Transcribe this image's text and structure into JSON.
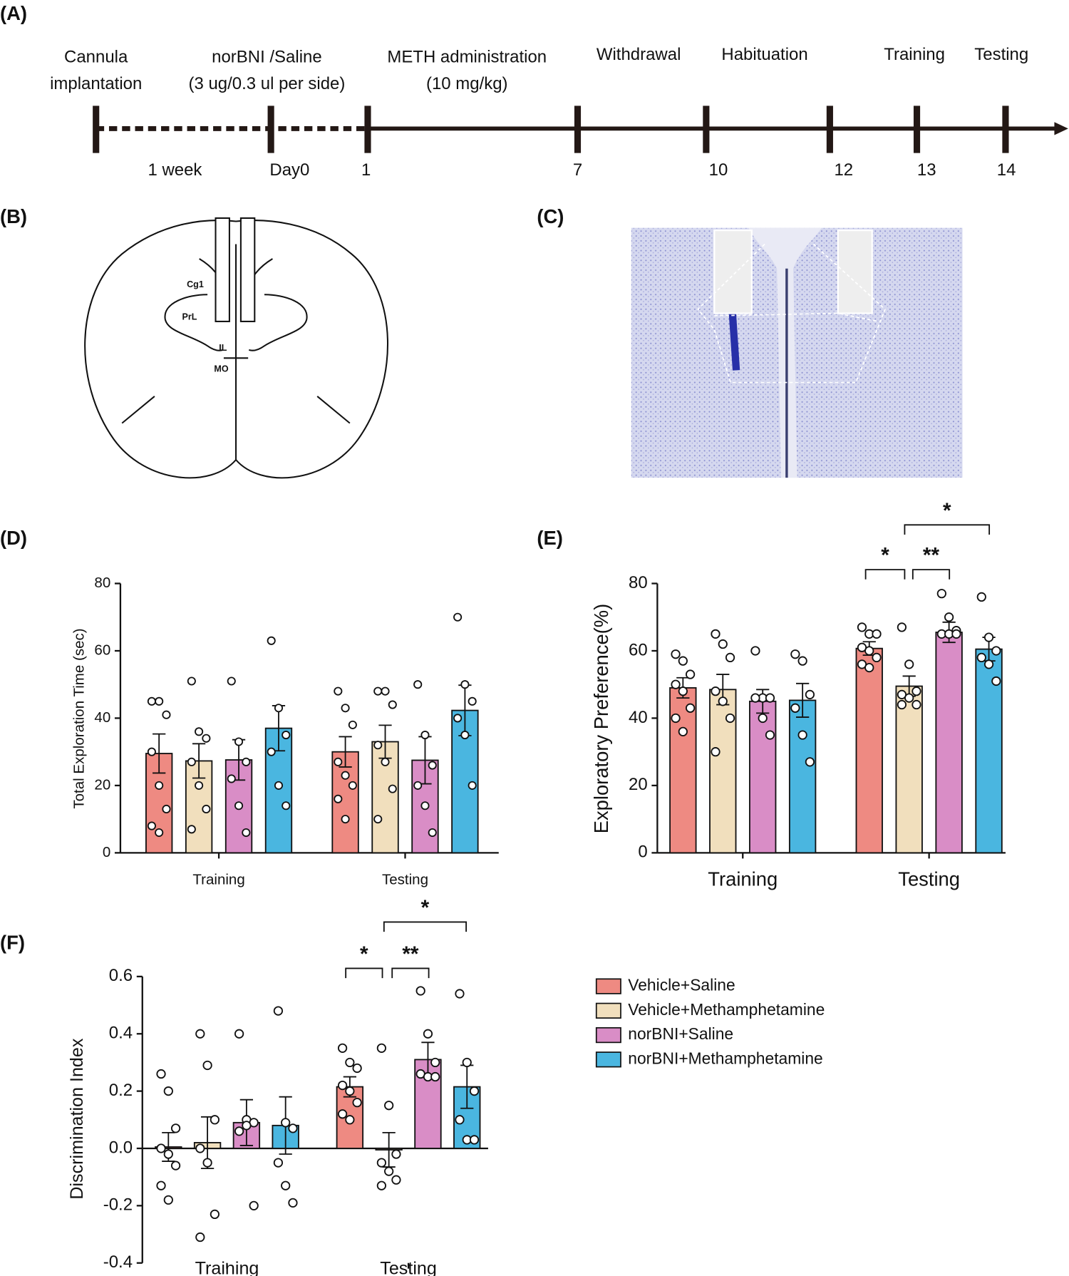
{
  "panel_labels": [
    "(A)",
    "(B)",
    "(C)",
    "(D)",
    "(E)",
    "(F)"
  ],
  "timeline": {
    "top_labels": [
      [
        "Cannula",
        "implantation"
      ],
      [
        "norBNI /Saline",
        "(3 ug/0.3 ul per side)"
      ],
      [
        "METH administration",
        "(10 mg/kg)"
      ],
      [
        "Withdrawal"
      ],
      [
        "Habituation"
      ],
      [
        "Training"
      ],
      [
        "Testing"
      ]
    ],
    "bottom_labels": [
      "1 week",
      "Day0",
      "1",
      "7",
      "10",
      "12",
      "13",
      "14"
    ]
  },
  "brain_labels": [
    "Cg1",
    "PrL",
    "IL",
    "MO"
  ],
  "chart_data": [
    {
      "type": "bar",
      "y_label": "Total Exploration Time (sec)",
      "categories": [
        "Training",
        "Testing"
      ],
      "ylim": [
        0,
        80
      ],
      "yticks": [
        0,
        20,
        40,
        60,
        80
      ],
      "series": [
        {
          "values": [
            29.5,
            30
          ],
          "errors": [
            5.8,
            4.5
          ],
          "points": [
            [
              45,
              45,
              41,
              30,
              20,
              13,
              8,
              6
            ],
            [
              48,
              43,
              38,
              27,
              23,
              20,
              16,
              10
            ]
          ]
        },
        {
          "values": [
            27.3,
            33
          ],
          "errors": [
            5.1,
            4.9
          ],
          "points": [
            [
              51,
              36,
              34,
              27,
              20,
              13,
              7
            ],
            [
              48,
              48,
              44,
              32,
              27,
              19,
              10
            ]
          ]
        },
        {
          "values": [
            27.6,
            27.5
          ],
          "errors": [
            6,
            7
          ],
          "points": [
            [
              51,
              33,
              27,
              22,
              14,
              6
            ],
            [
              50,
              35,
              26,
              20,
              14,
              6
            ]
          ]
        },
        {
          "values": [
            37,
            42.3
          ],
          "errors": [
            6.7,
            7.5
          ],
          "points": [
            [
              63,
              43,
              35,
              30,
              20,
              14
            ],
            [
              70,
              50,
              45,
              40,
              35,
              20
            ]
          ]
        }
      ]
    },
    {
      "type": "bar",
      "y_label": "Exploratory Preference(%)",
      "categories": [
        "Training",
        "Testing"
      ],
      "ylim": [
        0,
        80
      ],
      "yticks": [
        0,
        20,
        40,
        60,
        80
      ],
      "annotations": [
        "*",
        "**",
        "*"
      ],
      "series": [
        {
          "values": [
            49,
            60.7
          ],
          "errors": [
            3,
            2
          ],
          "points": [
            [
              59,
              57,
              53,
              50,
              48,
              43,
              40,
              36
            ],
            [
              67,
              65,
              65,
              61,
              60,
              58,
              56,
              55
            ]
          ]
        },
        {
          "values": [
            48.5,
            49.5
          ],
          "errors": [
            4.5,
            3
          ],
          "points": [
            [
              65,
              62,
              58,
              48,
              45,
              40,
              30
            ],
            [
              67,
              56,
              48,
              47,
              46,
              44,
              44
            ]
          ]
        },
        {
          "values": [
            45,
            65.5
          ],
          "errors": [
            3.5,
            3
          ],
          "points": [
            [
              60,
              46,
              46,
              46,
              40,
              35
            ],
            [
              77,
              70,
              66,
              65,
              65,
              65
            ]
          ]
        },
        {
          "values": [
            45.3,
            60.5
          ],
          "errors": [
            5,
            3.5
          ],
          "points": [
            [
              59,
              57,
              47,
              43,
              35,
              27
            ],
            [
              76,
              64,
              60,
              58,
              56,
              51
            ]
          ]
        }
      ]
    },
    {
      "type": "bar",
      "y_label": "Discrimination Index",
      "categories": [
        "Training",
        "Testing"
      ],
      "ylim": [
        -0.4,
        0.6
      ],
      "yticks": [
        {
          "value": -0.4,
          "label": "-0.4"
        },
        {
          "value": -0.2,
          "label": "-0.2"
        },
        {
          "value": 0,
          "label": "0.0"
        },
        {
          "value": 0.2,
          "label": "0.2"
        },
        {
          "value": 0.4,
          "label": "0.4"
        },
        {
          "value": 0.6,
          "label": "0.6"
        }
      ],
      "annotations": [
        "*",
        "**",
        "*"
      ],
      "series": [
        {
          "name": "Vehicle+Saline",
          "color": "#ee8a82",
          "values": [
            0.005,
            0.215
          ],
          "errors": [
            0.05,
            0.035
          ],
          "points": [
            [
              0.26,
              0.2,
              0.07,
              0,
              -0.02,
              -0.06,
              -0.13,
              -0.18
            ],
            [
              0.35,
              0.3,
              0.28,
              0.22,
              0.2,
              0.16,
              0.12,
              0.1
            ]
          ]
        },
        {
          "name": "Vehicle+Methamphetamine",
          "color": "#f1dfbd",
          "values": [
            0.02,
            -0.005
          ],
          "errors": [
            0.09,
            0.06
          ],
          "points": [
            [
              0.4,
              0.29,
              0.1,
              0,
              -0.05,
              -0.23,
              -0.31
            ],
            [
              0.35,
              0.15,
              -0.02,
              -0.05,
              -0.08,
              -0.11,
              -0.13
            ]
          ]
        },
        {
          "name": "norBNI+Saline",
          "color": "#d98dc6",
          "values": [
            0.09,
            0.31
          ],
          "errors": [
            0.08,
            0.06
          ],
          "points": [
            [
              0.4,
              0.1,
              0.09,
              0.06,
              0.08,
              -0.2
            ],
            [
              0.55,
              0.4,
              0.3,
              0.26,
              0.25,
              0.25
            ]
          ]
        },
        {
          "name": "norBNI+Methamphetamine",
          "color": "#4ab6e0",
          "values": [
            0.08,
            0.215
          ],
          "errors": [
            0.1,
            0.075
          ],
          "points": [
            [
              0.48,
              0.09,
              0.07,
              -0.05,
              -0.13,
              -0.19
            ],
            [
              0.54,
              0.3,
              0.2,
              0.1,
              0.03,
              0.03
            ]
          ]
        }
      ]
    }
  ]
}
